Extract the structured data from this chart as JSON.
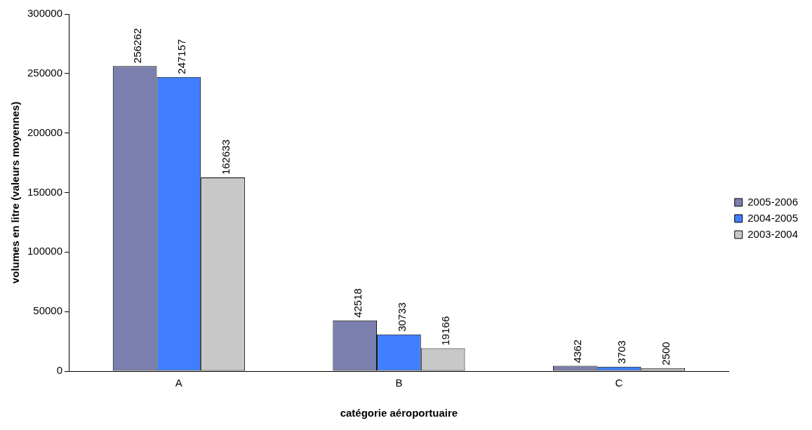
{
  "chart_data": {
    "type": "bar",
    "xlabel": "catégorie aéroportuaire",
    "ylabel": "volumes en litre (valeurs moyennes)",
    "categories": [
      "A",
      "B",
      "C"
    ],
    "series": [
      {
        "name": "2005-2006",
        "color": "#7b7fad",
        "values": [
          256262,
          42518,
          4362
        ]
      },
      {
        "name": "2004-2005",
        "color": "#3f7fff",
        "values": [
          247157,
          30733,
          3703
        ]
      },
      {
        "name": "2003-2004",
        "color": "#c8c8c8",
        "values": [
          162633,
          19166,
          2500
        ]
      }
    ],
    "ylim": [
      0,
      300000
    ],
    "yticks": [
      0,
      50000,
      100000,
      150000,
      200000,
      250000,
      300000
    ],
    "grid": false,
    "legend": "right",
    "data_labels": true
  }
}
